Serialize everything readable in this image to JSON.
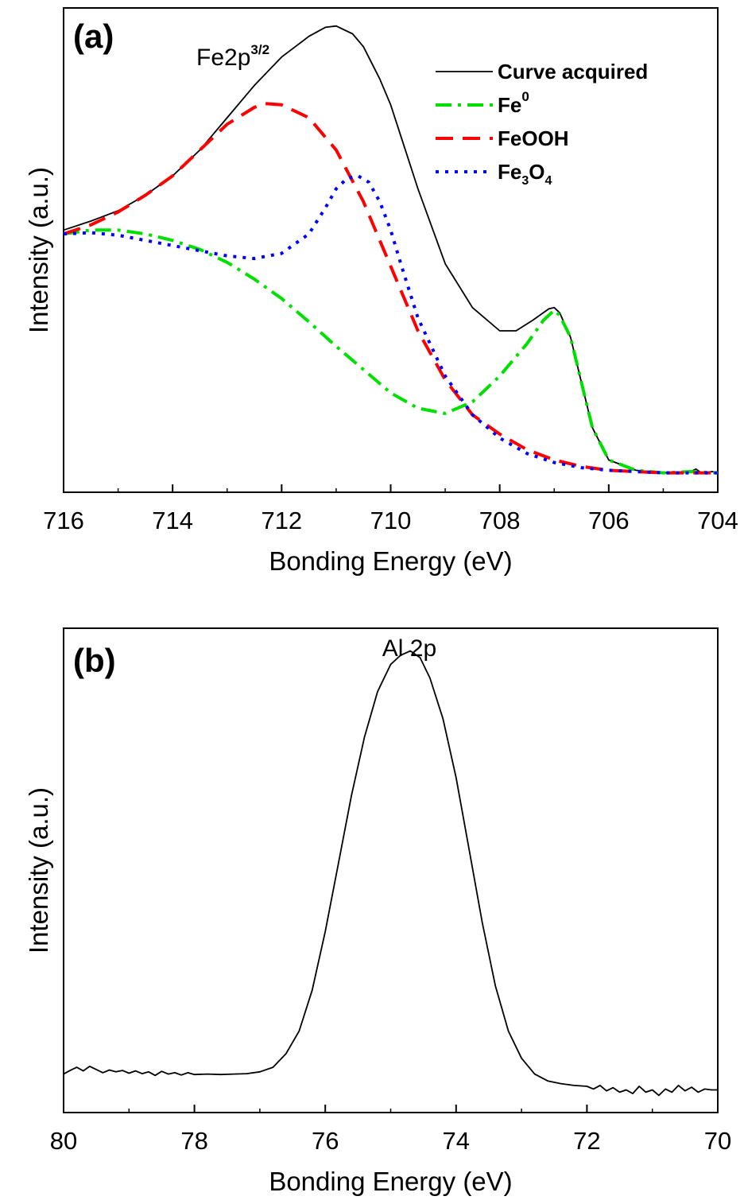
{
  "chart_data": [
    {
      "type": "line",
      "panel_label": "(a)",
      "annotation": {
        "base": "Fe2p",
        "sup": "3/2"
      },
      "xlabel": "Bonding Energy (eV)",
      "ylabel": "Intensity (a.u.)",
      "xlim": [
        716,
        704
      ],
      "x_reversed": true,
      "ylim": [
        -0.15,
        3.6
      ],
      "x_ticks": [
        716,
        714,
        712,
        710,
        708,
        706,
        704
      ],
      "legend_position": "top-right",
      "series": [
        {
          "name": "Curve acquired",
          "label": {
            "base": "Curve acquired"
          },
          "color": "#000000",
          "dash": "solid",
          "points": [
            [
              716,
              1.88
            ],
            [
              715.5,
              1.95
            ],
            [
              715,
              2.03
            ],
            [
              714.5,
              2.15
            ],
            [
              714,
              2.3
            ],
            [
              713.5,
              2.5
            ],
            [
              713,
              2.75
            ],
            [
              712.5,
              3.0
            ],
            [
              712,
              3.22
            ],
            [
              711.5,
              3.38
            ],
            [
              711.2,
              3.45
            ],
            [
              711,
              3.46
            ],
            [
              710.7,
              3.4
            ],
            [
              710.5,
              3.3
            ],
            [
              710.2,
              3.05
            ],
            [
              710,
              2.85
            ],
            [
              709.5,
              2.2
            ],
            [
              709,
              1.62
            ],
            [
              708.5,
              1.28
            ],
            [
              708,
              1.1
            ],
            [
              707.7,
              1.1
            ],
            [
              707.4,
              1.18
            ],
            [
              707.1,
              1.27
            ],
            [
              707,
              1.28
            ],
            [
              706.9,
              1.24
            ],
            [
              706.7,
              1.05
            ],
            [
              706.5,
              0.7
            ],
            [
              706.3,
              0.35
            ],
            [
              706,
              0.1
            ],
            [
              705.5,
              0.02
            ],
            [
              705,
              0.0
            ],
            [
              704.5,
              0.01
            ],
            [
              704.4,
              0.03
            ],
            [
              704.3,
              0.0
            ],
            [
              704.1,
              0.01
            ],
            [
              704,
              0.0
            ]
          ]
        },
        {
          "name": "Fe0",
          "label": {
            "base": "Fe",
            "sup": "0"
          },
          "color": "#00e000",
          "dash": "dashdot",
          "points": [
            [
              716,
              1.85
            ],
            [
              715.5,
              1.88
            ],
            [
              715,
              1.88
            ],
            [
              714.5,
              1.85
            ],
            [
              714,
              1.8
            ],
            [
              713.5,
              1.73
            ],
            [
              713,
              1.63
            ],
            [
              712.5,
              1.5
            ],
            [
              712,
              1.35
            ],
            [
              711.5,
              1.17
            ],
            [
              711,
              0.98
            ],
            [
              710.5,
              0.8
            ],
            [
              710,
              0.62
            ],
            [
              709.5,
              0.5
            ],
            [
              709,
              0.46
            ],
            [
              708.5,
              0.55
            ],
            [
              708,
              0.75
            ],
            [
              707.5,
              1.0
            ],
            [
              707.2,
              1.18
            ],
            [
              707,
              1.26
            ],
            [
              706.9,
              1.22
            ],
            [
              706.7,
              1.05
            ],
            [
              706.5,
              0.7
            ],
            [
              706.3,
              0.35
            ],
            [
              706,
              0.1
            ],
            [
              705.5,
              0.02
            ],
            [
              705,
              0.0
            ],
            [
              704.5,
              0.01
            ],
            [
              704,
              0.0
            ]
          ]
        },
        {
          "name": "FeOOH",
          "label": {
            "base": "FeOOH"
          },
          "color": "#ff0000",
          "dash": "dashed",
          "points": [
            [
              716,
              1.85
            ],
            [
              715.5,
              1.92
            ],
            [
              715,
              2.02
            ],
            [
              714.5,
              2.15
            ],
            [
              714,
              2.3
            ],
            [
              713.5,
              2.5
            ],
            [
              713,
              2.7
            ],
            [
              712.5,
              2.83
            ],
            [
              712.3,
              2.86
            ],
            [
              712,
              2.85
            ],
            [
              711.5,
              2.75
            ],
            [
              711,
              2.5
            ],
            [
              710.5,
              2.1
            ],
            [
              710,
              1.6
            ],
            [
              709.5,
              1.1
            ],
            [
              709,
              0.72
            ],
            [
              708.5,
              0.45
            ],
            [
              708,
              0.3
            ],
            [
              707.5,
              0.18
            ],
            [
              707,
              0.1
            ],
            [
              706.5,
              0.05
            ],
            [
              706,
              0.02
            ],
            [
              705,
              0.0
            ],
            [
              704,
              0.0
            ]
          ]
        },
        {
          "name": "Fe3O4",
          "label": {
            "base": "Fe",
            "sub1": "3",
            "mid": "O",
            "sub2": "4"
          },
          "color": "#0000ff",
          "dash": "dotted",
          "points": [
            [
              716,
              1.85
            ],
            [
              715.5,
              1.86
            ],
            [
              715,
              1.84
            ],
            [
              714.5,
              1.8
            ],
            [
              714,
              1.76
            ],
            [
              713.5,
              1.72
            ],
            [
              713,
              1.68
            ],
            [
              712.5,
              1.66
            ],
            [
              712,
              1.7
            ],
            [
              711.5,
              1.85
            ],
            [
              711.2,
              2.05
            ],
            [
              711,
              2.2
            ],
            [
              710.8,
              2.28
            ],
            [
              710.6,
              2.3
            ],
            [
              710.4,
              2.25
            ],
            [
              710.2,
              2.1
            ],
            [
              710,
              1.88
            ],
            [
              709.8,
              1.6
            ],
            [
              709.5,
              1.2
            ],
            [
              709,
              0.75
            ],
            [
              708.5,
              0.45
            ],
            [
              708,
              0.27
            ],
            [
              707.5,
              0.15
            ],
            [
              707,
              0.08
            ],
            [
              706.5,
              0.04
            ],
            [
              706,
              0.02
            ],
            [
              705,
              0.0
            ],
            [
              704,
              0.0
            ]
          ]
        }
      ]
    },
    {
      "type": "line",
      "panel_label": "(b)",
      "annotation": {
        "base": "Al 2p"
      },
      "xlabel": "Bonding Energy (eV)",
      "ylabel": "Intensity (a.u.)",
      "xlim": [
        80,
        70
      ],
      "x_reversed": true,
      "ylim": [
        0.0,
        1.07
      ],
      "x_ticks": [
        80,
        78,
        76,
        74,
        72,
        70
      ],
      "series": [
        {
          "color": "#000000",
          "dash": "solid",
          "points": [
            [
              80,
              0.085
            ],
            [
              79.9,
              0.093
            ],
            [
              79.8,
              0.1
            ],
            [
              79.7,
              0.092
            ],
            [
              79.6,
              0.102
            ],
            [
              79.5,
              0.095
            ],
            [
              79.4,
              0.088
            ],
            [
              79.3,
              0.094
            ],
            [
              79.2,
              0.09
            ],
            [
              79.1,
              0.093
            ],
            [
              79.0,
              0.087
            ],
            [
              78.9,
              0.092
            ],
            [
              78.8,
              0.086
            ],
            [
              78.7,
              0.09
            ],
            [
              78.6,
              0.082
            ],
            [
              78.5,
              0.091
            ],
            [
              78.4,
              0.085
            ],
            [
              78.3,
              0.088
            ],
            [
              78.2,
              0.083
            ],
            [
              78.1,
              0.088
            ],
            [
              78.0,
              0.084
            ],
            [
              77.8,
              0.085
            ],
            [
              77.6,
              0.084
            ],
            [
              77.4,
              0.085
            ],
            [
              77.2,
              0.086
            ],
            [
              77.0,
              0.09
            ],
            [
              76.8,
              0.1
            ],
            [
              76.6,
              0.13
            ],
            [
              76.4,
              0.18
            ],
            [
              76.2,
              0.27
            ],
            [
              76.0,
              0.4
            ],
            [
              75.8,
              0.55
            ],
            [
              75.6,
              0.7
            ],
            [
              75.4,
              0.83
            ],
            [
              75.2,
              0.93
            ],
            [
              75.0,
              0.99
            ],
            [
              74.85,
              1.01
            ],
            [
              74.7,
              1.02
            ],
            [
              74.55,
              1.005
            ],
            [
              74.4,
              0.96
            ],
            [
              74.2,
              0.87
            ],
            [
              74.0,
              0.74
            ],
            [
              73.8,
              0.58
            ],
            [
              73.6,
              0.42
            ],
            [
              73.4,
              0.28
            ],
            [
              73.2,
              0.18
            ],
            [
              73.0,
              0.12
            ],
            [
              72.8,
              0.085
            ],
            [
              72.6,
              0.07
            ],
            [
              72.4,
              0.064
            ],
            [
              72.2,
              0.06
            ],
            [
              72.0,
              0.058
            ],
            [
              71.9,
              0.052
            ],
            [
              71.8,
              0.06
            ],
            [
              71.7,
              0.048
            ],
            [
              71.6,
              0.055
            ],
            [
              71.5,
              0.045
            ],
            [
              71.4,
              0.05
            ],
            [
              71.3,
              0.042
            ],
            [
              71.2,
              0.058
            ],
            [
              71.1,
              0.045
            ],
            [
              71.0,
              0.05
            ],
            [
              70.9,
              0.038
            ],
            [
              70.8,
              0.052
            ],
            [
              70.7,
              0.045
            ],
            [
              70.6,
              0.06
            ],
            [
              70.5,
              0.048
            ],
            [
              70.4,
              0.056
            ],
            [
              70.3,
              0.045
            ],
            [
              70.2,
              0.052
            ],
            [
              70.1,
              0.05
            ],
            [
              70.0,
              0.05
            ]
          ]
        }
      ]
    }
  ]
}
